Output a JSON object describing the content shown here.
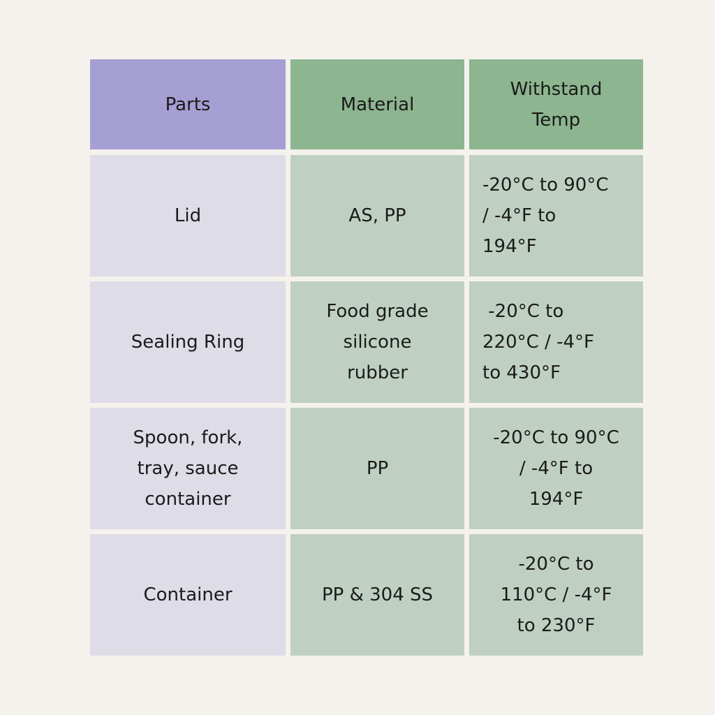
{
  "colors": {
    "header_parts": "#a59fd4",
    "header_other": "#8db58f",
    "body_parts": "#dedce6",
    "body_other": "#bfd0c3",
    "background": "#f5f2ed"
  },
  "table": {
    "headers": [
      "Parts",
      "Material",
      "Withstand\nTemp"
    ],
    "rows": [
      [
        "Lid",
        "AS, PP",
        "-20°C to 90°C\n/ -4°F to\n194°F"
      ],
      [
        "Sealing Ring",
        "Food grade\nsilicone\nrubber",
        " -20°C to\n220°C / -4°F\nto 430°F"
      ],
      [
        "Spoon, fork,\ntray, sauce\ncontainer",
        "PP",
        "-20°C to 90°C\n/ -4°F to\n194°F"
      ],
      [
        "Container",
        "PP & 304 SS",
        "-20°C to\n110°C / -4°F\nto 230°F"
      ]
    ]
  }
}
